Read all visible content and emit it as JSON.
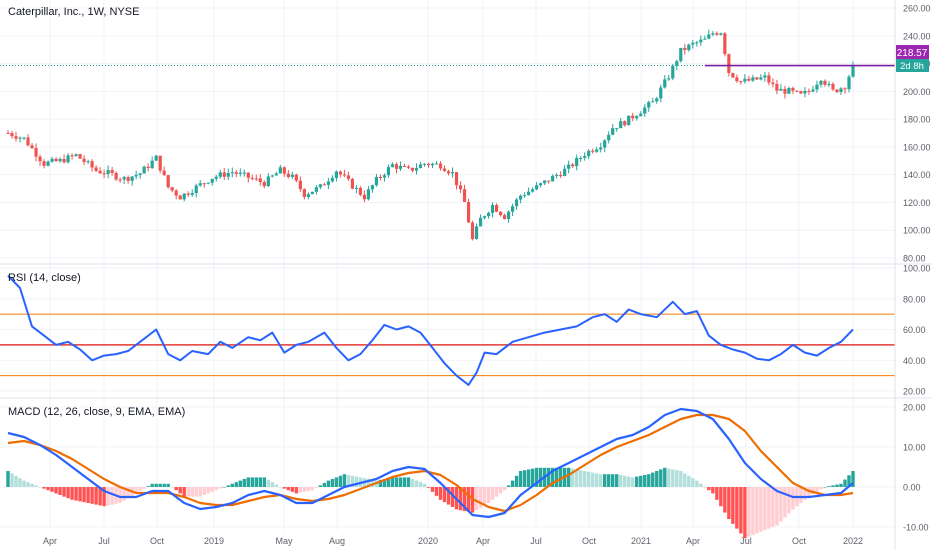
{
  "colors": {
    "up": "#26a69a",
    "down": "#ef5350",
    "rsi_line": "#2962ff",
    "rsi_bands": "#f57c00",
    "rsi_mid": "#e53935",
    "macd_line": "#2962ff",
    "signal_line": "#ef6c00",
    "hist_up_strong": "#26a69a",
    "hist_up_weak": "#b2dfdb",
    "hist_down_strong": "#ff5252",
    "hist_down_weak": "#ffcdd2",
    "resistance": "#7b1fa2",
    "last_price_line": "#26a69a",
    "grid": "#f0f3fa",
    "text": "#131722",
    "axis_text": "#5d606b"
  },
  "header": {
    "main_title": "Caterpillar, Inc., 1W, NYSE",
    "rsi_title": "RSI (14, close)",
    "macd_title": "MACD (12, 26, close, 9, EMA, EMA)"
  },
  "price_badge": {
    "price": "218.57",
    "countdown": "2d 8h"
  },
  "axes": {
    "price_ticks": [
      "260.00",
      "240.00",
      "220.00",
      "200.00",
      "180.00",
      "160.00",
      "140.00",
      "120.00",
      "100.00",
      "80.00"
    ],
    "rsi_ticks": [
      "100.00",
      "80.00",
      "60.00",
      "40.00",
      "20.00"
    ],
    "macd_ticks": [
      "20.00",
      "10.00",
      "0.00",
      "-10.00"
    ],
    "time_ticks": [
      "Apr",
      "Jul",
      "Oct",
      "2019",
      "May",
      "Aug",
      "2020",
      "Apr",
      "Jul",
      "Oct",
      "2021",
      "Apr",
      "Jul",
      "Oct",
      "2022"
    ]
  },
  "chart_data": [
    {
      "type": "candlestick",
      "title": "Caterpillar, Inc., 1W, NYSE",
      "ylim": [
        76,
        262
      ],
      "grid": true,
      "x_range": [
        "2018-01",
        "2022-01"
      ],
      "resistance_level": 218.57,
      "last_price": 218.57,
      "price_path_anchors": [
        {
          "t": 0,
          "p": 170
        },
        {
          "t": 4,
          "p": 166
        },
        {
          "t": 9,
          "p": 148
        },
        {
          "t": 13,
          "p": 150
        },
        {
          "t": 17,
          "p": 154
        },
        {
          "t": 22,
          "p": 143
        },
        {
          "t": 25,
          "p": 141
        },
        {
          "t": 29,
          "p": 137
        },
        {
          "t": 33,
          "p": 141
        },
        {
          "t": 37,
          "p": 152
        },
        {
          "t": 40,
          "p": 131
        },
        {
          "t": 43,
          "p": 124
        },
        {
          "t": 47,
          "p": 131
        },
        {
          "t": 51,
          "p": 138
        },
        {
          "t": 56,
          "p": 142
        },
        {
          "t": 60,
          "p": 138
        },
        {
          "t": 64,
          "p": 134
        },
        {
          "t": 68,
          "p": 143
        },
        {
          "t": 71,
          "p": 138
        },
        {
          "t": 74,
          "p": 126
        },
        {
          "t": 78,
          "p": 131
        },
        {
          "t": 82,
          "p": 143
        },
        {
          "t": 86,
          "p": 132
        },
        {
          "t": 89,
          "p": 124
        },
        {
          "t": 92,
          "p": 136
        },
        {
          "t": 96,
          "p": 147
        },
        {
          "t": 100,
          "p": 143
        },
        {
          "t": 104,
          "p": 148
        },
        {
          "t": 108,
          "p": 147
        },
        {
          "t": 111,
          "p": 141
        },
        {
          "t": 114,
          "p": 120
        },
        {
          "t": 116,
          "p": 93
        },
        {
          "t": 118,
          "p": 108
        },
        {
          "t": 121,
          "p": 118
        },
        {
          "t": 124,
          "p": 110
        },
        {
          "t": 128,
          "p": 125
        },
        {
          "t": 132,
          "p": 131
        },
        {
          "t": 136,
          "p": 138
        },
        {
          "t": 140,
          "p": 145
        },
        {
          "t": 144,
          "p": 155
        },
        {
          "t": 148,
          "p": 162
        },
        {
          "t": 151,
          "p": 174
        },
        {
          "t": 154,
          "p": 178
        },
        {
          "t": 158,
          "p": 186
        },
        {
          "t": 161,
          "p": 192
        },
        {
          "t": 165,
          "p": 211
        },
        {
          "t": 168,
          "p": 229
        },
        {
          "t": 171,
          "p": 234
        },
        {
          "t": 174,
          "p": 237
        },
        {
          "t": 176,
          "p": 242
        },
        {
          "t": 178,
          "p": 243
        },
        {
          "t": 180,
          "p": 214
        },
        {
          "t": 183,
          "p": 207
        },
        {
          "t": 186,
          "p": 208
        },
        {
          "t": 189,
          "p": 210
        },
        {
          "t": 192,
          "p": 201
        },
        {
          "t": 195,
          "p": 200
        },
        {
          "t": 198,
          "p": 197
        },
        {
          "t": 200,
          "p": 200
        },
        {
          "t": 203,
          "p": 210
        },
        {
          "t": 206,
          "p": 200
        },
        {
          "t": 209,
          "p": 204
        },
        {
          "t": 211,
          "p": 218.57
        }
      ]
    },
    {
      "type": "line",
      "title": "RSI (14, close)",
      "ylim": [
        15,
        100
      ],
      "bands": {
        "upper": 70,
        "middle": 50,
        "lower": 30
      },
      "x": [
        0,
        3,
        6,
        9,
        12,
        15,
        18,
        21,
        24,
        27,
        30,
        33,
        37,
        40,
        43,
        46,
        50,
        53,
        56,
        60,
        63,
        66,
        69,
        72,
        75,
        79,
        82,
        85,
        88,
        91,
        94,
        97,
        100,
        103,
        106,
        109,
        112,
        115,
        117,
        119,
        122,
        126,
        130,
        134,
        138,
        142,
        146,
        149,
        152,
        155,
        158,
        162,
        166,
        169,
        172,
        175,
        178,
        181,
        184,
        187,
        190,
        193,
        196,
        199,
        202,
        205,
        208,
        211
      ],
      "y": [
        95,
        87,
        62,
        56,
        50,
        52,
        47,
        40,
        43,
        44,
        46,
        52,
        60,
        44,
        40,
        46,
        44,
        52,
        48,
        55,
        53,
        58,
        45,
        50,
        52,
        58,
        48,
        40,
        44,
        53,
        63,
        60,
        62,
        58,
        48,
        38,
        30,
        24,
        32,
        45,
        44,
        52,
        55,
        58,
        60,
        62,
        68,
        70,
        65,
        73,
        70,
        68,
        78,
        70,
        72,
        56,
        50,
        47,
        45,
        41,
        40,
        44,
        50,
        45,
        43,
        48,
        52,
        60
      ]
    },
    {
      "type": "line",
      "title": "MACD (12, 26, close, 9, EMA, EMA)",
      "ylim": [
        -10,
        20
      ],
      "series": [
        {
          "name": "MACD",
          "x": [
            0,
            4,
            8,
            12,
            16,
            20,
            24,
            28,
            32,
            36,
            40,
            44,
            48,
            52,
            56,
            60,
            64,
            68,
            72,
            76,
            80,
            84,
            88,
            92,
            96,
            100,
            104,
            108,
            112,
            116,
            120,
            124,
            128,
            132,
            136,
            140,
            144,
            148,
            152,
            156,
            160,
            164,
            168,
            172,
            176,
            180,
            184,
            188,
            192,
            196,
            200,
            204,
            208,
            211
          ],
          "y": [
            13.5,
            12.5,
            10.5,
            8,
            5,
            2,
            -1,
            -2.5,
            -2.5,
            -1,
            -1,
            -4,
            -5.5,
            -5,
            -4,
            -2,
            -1,
            -2,
            -4,
            -4,
            -2,
            0,
            1,
            2,
            4,
            5,
            4.5,
            1,
            -3,
            -7,
            -7.5,
            -6.5,
            -2,
            1,
            4,
            6,
            8,
            10,
            12,
            13,
            15,
            18,
            19.5,
            19,
            17,
            12,
            6,
            2,
            -1,
            -2.5,
            -2.5,
            -2,
            -1.5,
            1
          ]
        },
        {
          "name": "Signal",
          "x": [
            0,
            4,
            8,
            12,
            16,
            20,
            24,
            28,
            32,
            36,
            40,
            44,
            48,
            52,
            56,
            60,
            64,
            68,
            72,
            76,
            80,
            84,
            88,
            92,
            96,
            100,
            104,
            108,
            112,
            116,
            120,
            124,
            128,
            132,
            136,
            140,
            144,
            148,
            152,
            156,
            160,
            164,
            168,
            172,
            176,
            180,
            184,
            188,
            192,
            196,
            200,
            204,
            208,
            211
          ],
          "y": [
            11,
            11.5,
            10.5,
            9,
            7,
            4.5,
            2,
            0,
            -1.5,
            -1.5,
            -1.5,
            -2.5,
            -4,
            -4.5,
            -4.5,
            -3.5,
            -2.5,
            -2,
            -3,
            -3.5,
            -3,
            -2,
            -0.5,
            1,
            2.5,
            3.5,
            4,
            3,
            0.5,
            -3,
            -5,
            -6,
            -4.5,
            -2,
            1,
            3,
            5.5,
            8,
            10,
            11.5,
            13,
            15,
            17,
            18,
            18,
            17,
            14,
            9,
            5,
            1,
            -1,
            -2,
            -2,
            -1.5
          ]
        }
      ]
    }
  ]
}
